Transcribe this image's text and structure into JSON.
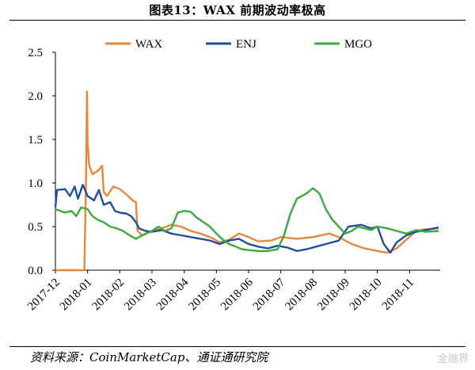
{
  "title": "图表13：WAX 前期波动率极高",
  "source": "资料来源：CoinMarketCap、通证通研究院",
  "watermark": "金融界",
  "chart_data": {
    "type": "line",
    "title": "图表13：WAX 前期波动率极高",
    "xlabel": "",
    "ylabel": "",
    "ylim": [
      0,
      2.5
    ],
    "yticks": [
      "0.0",
      "0.5",
      "1.0",
      "1.5",
      "2.0",
      "2.5"
    ],
    "xticks": [
      "2017-12",
      "2018-01",
      "2018-02",
      "2018-03",
      "2018-04",
      "2018-05",
      "2018-06",
      "2018-07",
      "2018-08",
      "2018-09",
      "2018-10",
      "2018-11"
    ],
    "legend_position": "top",
    "series": [
      {
        "name": "WAX",
        "color": "#E8873A",
        "points": [
          [
            0,
            0
          ],
          [
            0.9,
            0
          ],
          [
            0.9,
            0.02
          ],
          [
            0.95,
            1.0
          ],
          [
            0.98,
            2.05
          ],
          [
            1.0,
            1.45
          ],
          [
            1.05,
            1.2
          ],
          [
            1.15,
            1.1
          ],
          [
            1.35,
            1.15
          ],
          [
            1.45,
            1.2
          ],
          [
            1.5,
            0.9
          ],
          [
            1.6,
            0.85
          ],
          [
            1.8,
            0.96
          ],
          [
            2.0,
            0.93
          ],
          [
            2.2,
            0.87
          ],
          [
            2.4,
            0.8
          ],
          [
            2.5,
            0.78
          ],
          [
            2.55,
            0.45
          ],
          [
            2.7,
            0.4
          ],
          [
            3.0,
            0.45
          ],
          [
            3.3,
            0.48
          ],
          [
            3.6,
            0.52
          ],
          [
            3.9,
            0.5
          ],
          [
            4.2,
            0.45
          ],
          [
            4.5,
            0.42
          ],
          [
            4.8,
            0.38
          ],
          [
            5.1,
            0.32
          ],
          [
            5.4,
            0.35
          ],
          [
            5.7,
            0.42
          ],
          [
            6.0,
            0.38
          ],
          [
            6.3,
            0.33
          ],
          [
            6.7,
            0.34
          ],
          [
            7.0,
            0.38
          ],
          [
            7.5,
            0.36
          ],
          [
            8.0,
            0.38
          ],
          [
            8.5,
            0.42
          ],
          [
            8.8,
            0.38
          ],
          [
            9.2,
            0.3
          ],
          [
            9.6,
            0.25
          ],
          [
            10.0,
            0.22
          ],
          [
            10.3,
            0.2
          ],
          [
            10.6,
            0.25
          ],
          [
            10.9,
            0.35
          ],
          [
            11.2,
            0.45
          ],
          [
            11.5,
            0.47
          ],
          [
            11.9,
            0.48
          ]
        ]
      },
      {
        "name": "ENJ",
        "color": "#1F4E9C",
        "points": [
          [
            0,
            0.72
          ],
          [
            0.05,
            0.92
          ],
          [
            0.3,
            0.93
          ],
          [
            0.45,
            0.85
          ],
          [
            0.6,
            0.96
          ],
          [
            0.7,
            0.82
          ],
          [
            0.85,
            0.98
          ],
          [
            1.0,
            0.85
          ],
          [
            1.2,
            0.8
          ],
          [
            1.35,
            0.92
          ],
          [
            1.5,
            0.75
          ],
          [
            1.7,
            0.78
          ],
          [
            1.85,
            0.68
          ],
          [
            2.0,
            0.66
          ],
          [
            2.2,
            0.65
          ],
          [
            2.35,
            0.62
          ],
          [
            2.5,
            0.55
          ],
          [
            2.6,
            0.48
          ],
          [
            2.8,
            0.45
          ],
          [
            3.0,
            0.44
          ],
          [
            3.3,
            0.46
          ],
          [
            3.6,
            0.42
          ],
          [
            3.9,
            0.4
          ],
          [
            4.2,
            0.38
          ],
          [
            4.5,
            0.36
          ],
          [
            4.8,
            0.34
          ],
          [
            5.1,
            0.3
          ],
          [
            5.4,
            0.34
          ],
          [
            5.7,
            0.36
          ],
          [
            6.0,
            0.3
          ],
          [
            6.3,
            0.27
          ],
          [
            6.6,
            0.25
          ],
          [
            6.9,
            0.28
          ],
          [
            7.2,
            0.26
          ],
          [
            7.5,
            0.22
          ],
          [
            7.8,
            0.24
          ],
          [
            8.1,
            0.27
          ],
          [
            8.4,
            0.3
          ],
          [
            8.8,
            0.34
          ],
          [
            9.1,
            0.5
          ],
          [
            9.5,
            0.52
          ],
          [
            9.8,
            0.48
          ],
          [
            10.0,
            0.5
          ],
          [
            10.2,
            0.3
          ],
          [
            10.4,
            0.2
          ],
          [
            10.6,
            0.32
          ],
          [
            10.9,
            0.4
          ],
          [
            11.2,
            0.44
          ],
          [
            11.5,
            0.46
          ],
          [
            11.9,
            0.49
          ]
        ]
      },
      {
        "name": "MGO",
        "color": "#3DAA3C",
        "points": [
          [
            0,
            0.7
          ],
          [
            0.3,
            0.66
          ],
          [
            0.5,
            0.68
          ],
          [
            0.65,
            0.62
          ],
          [
            0.8,
            0.72
          ],
          [
            1.0,
            0.7
          ],
          [
            1.15,
            0.62
          ],
          [
            1.3,
            0.58
          ],
          [
            1.5,
            0.55
          ],
          [
            1.7,
            0.5
          ],
          [
            1.9,
            0.48
          ],
          [
            2.1,
            0.45
          ],
          [
            2.3,
            0.4
          ],
          [
            2.5,
            0.36
          ],
          [
            2.7,
            0.4
          ],
          [
            3.0,
            0.45
          ],
          [
            3.2,
            0.5
          ],
          [
            3.4,
            0.45
          ],
          [
            3.6,
            0.48
          ],
          [
            3.8,
            0.66
          ],
          [
            4.0,
            0.68
          ],
          [
            4.2,
            0.67
          ],
          [
            4.4,
            0.6
          ],
          [
            4.6,
            0.55
          ],
          [
            4.8,
            0.5
          ],
          [
            5.0,
            0.42
          ],
          [
            5.2,
            0.35
          ],
          [
            5.4,
            0.3
          ],
          [
            5.6,
            0.27
          ],
          [
            5.8,
            0.24
          ],
          [
            6.0,
            0.23
          ],
          [
            6.3,
            0.22
          ],
          [
            6.6,
            0.22
          ],
          [
            6.9,
            0.24
          ],
          [
            7.1,
            0.4
          ],
          [
            7.3,
            0.65
          ],
          [
            7.5,
            0.82
          ],
          [
            7.8,
            0.88
          ],
          [
            8.0,
            0.94
          ],
          [
            8.2,
            0.88
          ],
          [
            8.4,
            0.7
          ],
          [
            8.6,
            0.58
          ],
          [
            8.8,
            0.5
          ],
          [
            9.0,
            0.42
          ],
          [
            9.2,
            0.45
          ],
          [
            9.4,
            0.5
          ],
          [
            9.6,
            0.48
          ],
          [
            9.8,
            0.46
          ],
          [
            10.0,
            0.5
          ],
          [
            10.3,
            0.48
          ],
          [
            10.6,
            0.45
          ],
          [
            10.9,
            0.42
          ],
          [
            11.2,
            0.46
          ],
          [
            11.5,
            0.44
          ],
          [
            11.9,
            0.45
          ]
        ]
      }
    ]
  }
}
